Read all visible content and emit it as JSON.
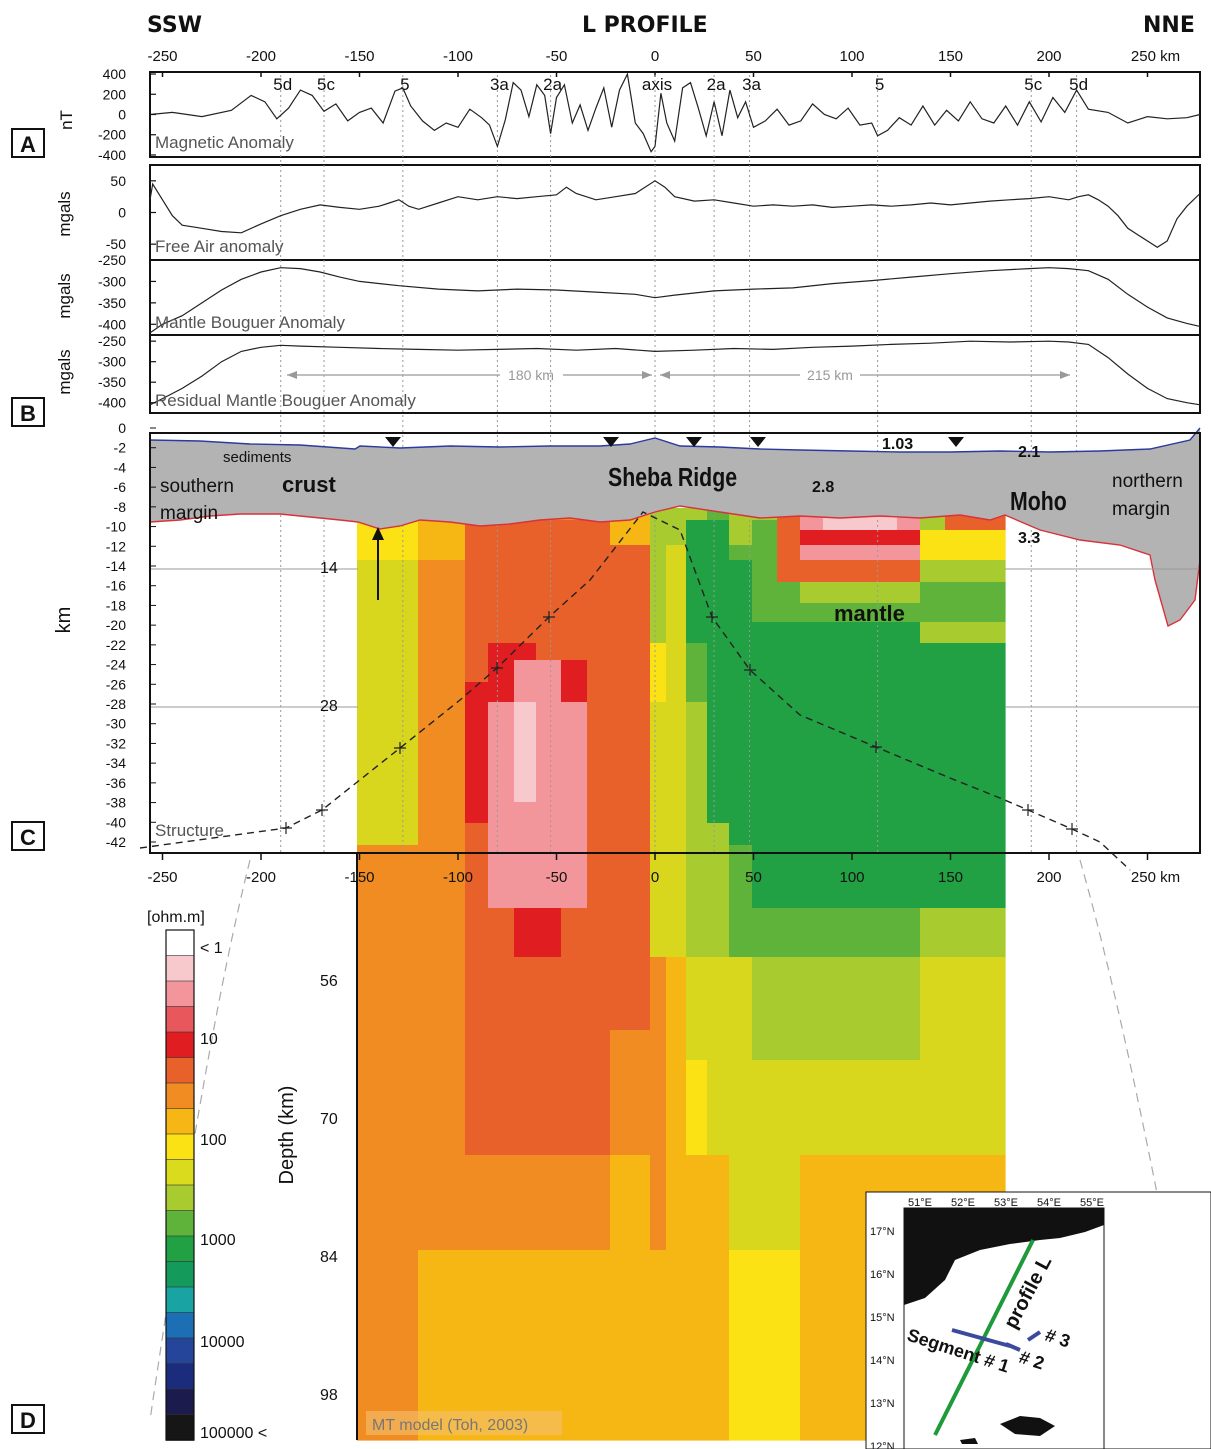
{
  "header": {
    "left": "SSW",
    "title": "L PROFILE",
    "right": "NNE"
  },
  "top_axis": {
    "ticks": [
      "-250",
      "-200",
      "-150",
      "-100",
      "-50",
      "0",
      "50",
      "100",
      "150",
      "200",
      "250 km"
    ],
    "values": [
      -250,
      -200,
      -150,
      -100,
      -50,
      0,
      50,
      100,
      150,
      200,
      250
    ]
  },
  "bottom_axis": {
    "ticks": [
      "-250",
      "-200",
      "-150",
      "-100",
      "-50",
      "0",
      "50",
      "100",
      "150",
      "200",
      "250 km"
    ],
    "values": [
      -250,
      -200,
      -150,
      -100,
      -50,
      0,
      50,
      100,
      150,
      200,
      250
    ]
  },
  "panel_letters": {
    "a": "A",
    "b": "B",
    "c": "C",
    "d": "D"
  },
  "chron_markers": [
    {
      "label": "5d",
      "x": -190
    },
    {
      "label": "5c",
      "x": -168
    },
    {
      "label": "5",
      "x": -128
    },
    {
      "label": "3a",
      "x": -80
    },
    {
      "label": "2a",
      "x": -53
    },
    {
      "label": "axis",
      "x": 0
    },
    {
      "label": "2a",
      "x": 30
    },
    {
      "label": "3a",
      "x": 48
    },
    {
      "label": "5",
      "x": 113
    },
    {
      "label": "5c",
      "x": 191
    },
    {
      "label": "5d",
      "x": 214
    }
  ],
  "panels": {
    "magnetic": {
      "name": "Magnetic Anomaly",
      "ylabel": "nT",
      "yticks": [
        "400",
        "200",
        "0",
        "-200",
        "-400"
      ]
    },
    "freeair": {
      "name": "Free Air anomaly",
      "ylabel": "mgals",
      "yticks": [
        "50",
        "0",
        "-50"
      ]
    },
    "bouguer": {
      "name": "Mantle Bouguer Anomaly",
      "ylabel": "mgals",
      "yticks": [
        "-250",
        "-300",
        "-350",
        "-400"
      ]
    },
    "residual": {
      "name": "Residual Mantle Bouguer Anomaly",
      "ylabel": "mgals",
      "yticks": [
        "-250",
        "-300",
        "-350",
        "-400"
      ],
      "span_left": "180 km",
      "span_right": "215 km"
    },
    "structure": {
      "name": "Structure",
      "ylabel": "km",
      "yticks": [
        "0",
        "-2",
        "-4",
        "-6",
        "-8",
        "-10",
        "-12",
        "-14",
        "-16",
        "-18",
        "-20",
        "-22",
        "-24",
        "-26",
        "-28",
        "-30",
        "-32",
        "-34",
        "-36",
        "-38",
        "-40",
        "-42"
      ],
      "labels": {
        "sediments": "sediments",
        "southern_margin_1": "southern",
        "southern_margin_2": "margin",
        "crust": "crust",
        "sheba": "Sheba Ridge",
        "moho": "Moho",
        "mantle": "mantle",
        "northern_margin_1": "northern",
        "northern_margin_2": "margin",
        "d103": "1.03",
        "d21": "2.1",
        "d28": "2.8",
        "d33": "3.3"
      },
      "depth_marks": [
        "14",
        "28"
      ]
    },
    "mt": {
      "depth_label": "Depth (km)",
      "depth_marks": [
        "56",
        "70",
        "84",
        "98"
      ],
      "credit": "MT model (Toh, 2003)"
    }
  },
  "colorbar": {
    "unit": "[ohm.m]",
    "labels": [
      "< 1",
      "10",
      "100",
      "1000",
      "10000",
      "100000 <"
    ],
    "colors": [
      "#ffffff",
      "#f7c9cc",
      "#f2969b",
      "#e8575c",
      "#e01e22",
      "#e8602a",
      "#f08c22",
      "#f6b714",
      "#fbe214",
      "#dbdb1e",
      "#a8cc30",
      "#5fb33a",
      "#21a144",
      "#149a5a",
      "#19a3a3",
      "#1c6fb4",
      "#24459a",
      "#1c2c7d",
      "#1b1b4e",
      "#161616"
    ]
  },
  "inset_map": {
    "lon_labels": [
      "51°E",
      "52°E",
      "53°E",
      "54°E",
      "55°E"
    ],
    "lat_labels": [
      "17°N",
      "16°N",
      "15°N",
      "14°N",
      "13°N",
      "12°N"
    ],
    "profile": "profile L",
    "segment": "Segment # 1",
    "seg2": "# 2",
    "seg3": "# 3"
  },
  "chart_data": [
    {
      "type": "line",
      "title": "Magnetic Anomaly",
      "ylabel": "nT",
      "xlim": [
        -260,
        278
      ],
      "ylim": [
        -400,
        400
      ],
      "series": [
        {
          "name": "Magnetic Anomaly",
          "x": [
            -260,
            -245,
            -230,
            -215,
            -205,
            -198,
            -192,
            -186,
            -180,
            -174,
            -168,
            -162,
            -156,
            -150,
            -144,
            -138,
            -132,
            -128,
            -124,
            -118,
            -112,
            -106,
            -100,
            -94,
            -88,
            -84,
            -80,
            -76,
            -72,
            -68,
            -64,
            -60,
            -56,
            -53,
            -50,
            -46,
            -42,
            -38,
            -34,
            -30,
            -26,
            -22,
            -18,
            -14,
            -10,
            -6,
            -2,
            0,
            3,
            6,
            10,
            14,
            18,
            22,
            26,
            30,
            34,
            38,
            42,
            46,
            50,
            56,
            62,
            68,
            74,
            80,
            86,
            92,
            98,
            104,
            110,
            113,
            118,
            124,
            130,
            136,
            142,
            148,
            154,
            160,
            166,
            172,
            178,
            184,
            190,
            196,
            202,
            208,
            214,
            220,
            230,
            240,
            250,
            260,
            270,
            278
          ],
          "y": [
            0,
            20,
            -20,
            40,
            180,
            120,
            -40,
            60,
            230,
            180,
            30,
            100,
            -60,
            20,
            60,
            -80,
            220,
            250,
            80,
            -60,
            -150,
            -80,
            -120,
            50,
            -30,
            -100,
            -300,
            -50,
            300,
            230,
            -20,
            280,
            180,
            -180,
            160,
            280,
            -80,
            90,
            -150,
            60,
            250,
            -120,
            230,
            380,
            -80,
            -180,
            -350,
            -300,
            200,
            -80,
            -250,
            250,
            300,
            60,
            -200,
            120,
            -200,
            230,
            -30,
            120,
            -120,
            -60,
            50,
            -100,
            -60,
            100,
            0,
            -40,
            60,
            -100,
            -80,
            -200,
            -150,
            -30,
            -100,
            80,
            -100,
            40,
            -60,
            120,
            -40,
            -80,
            80,
            -100,
            120,
            -70,
            160,
            20,
            230,
            50,
            20,
            -80,
            -20,
            -40,
            -30,
            0
          ]
        }
      ]
    },
    {
      "type": "line",
      "title": "Free Air anomaly",
      "ylabel": "mgals",
      "xlim": [
        -260,
        278
      ],
      "ylim": [
        -75,
        75
      ],
      "series": [
        {
          "name": "Free Air anomaly",
          "x": [
            -260,
            -255,
            -250,
            -245,
            -240,
            -230,
            -220,
            -210,
            -200,
            -190,
            -180,
            -170,
            -160,
            -150,
            -140,
            -135,
            -130,
            -125,
            -120,
            -110,
            -100,
            -90,
            -80,
            -70,
            -60,
            -50,
            -45,
            -40,
            -30,
            -20,
            -10,
            0,
            5,
            10,
            20,
            30,
            40,
            50,
            60,
            70,
            80,
            90,
            100,
            110,
            120,
            130,
            140,
            150,
            160,
            170,
            180,
            190,
            200,
            210,
            215,
            220,
            225,
            230,
            235,
            240,
            245,
            250,
            255,
            260,
            265,
            270,
            278
          ],
          "y": [
            20,
            45,
            20,
            -5,
            -20,
            -25,
            -30,
            -32,
            -18,
            -5,
            5,
            12,
            8,
            5,
            10,
            15,
            20,
            10,
            5,
            15,
            25,
            20,
            25,
            22,
            25,
            28,
            40,
            30,
            20,
            25,
            30,
            50,
            40,
            25,
            18,
            20,
            15,
            10,
            12,
            10,
            12,
            8,
            10,
            12,
            10,
            12,
            15,
            12,
            15,
            18,
            20,
            22,
            25,
            20,
            25,
            28,
            20,
            10,
            -5,
            -25,
            -35,
            -45,
            -55,
            -45,
            -10,
            10,
            30
          ]
        }
      ]
    },
    {
      "type": "line",
      "title": "Mantle Bouguer Anomaly",
      "ylabel": "mgals",
      "xlim": [
        -260,
        278
      ],
      "ylim": [
        -425,
        -250
      ],
      "series": [
        {
          "name": "Mantle Bouguer Anomaly",
          "x": [
            -260,
            -250,
            -240,
            -230,
            -220,
            -210,
            -200,
            -190,
            -180,
            -170,
            -160,
            -150,
            -130,
            -110,
            -90,
            -70,
            -50,
            -30,
            -10,
            0,
            10,
            30,
            50,
            70,
            90,
            110,
            130,
            150,
            170,
            190,
            200,
            210,
            220,
            230,
            240,
            250,
            260,
            270,
            278
          ],
          "y": [
            -420,
            -400,
            -380,
            -350,
            -320,
            -295,
            -278,
            -268,
            -270,
            -278,
            -290,
            -300,
            -310,
            -318,
            -322,
            -318,
            -320,
            -325,
            -330,
            -338,
            -332,
            -322,
            -318,
            -315,
            -305,
            -298,
            -290,
            -282,
            -275,
            -270,
            -268,
            -270,
            -275,
            -295,
            -330,
            -360,
            -385,
            -398,
            -405
          ]
        }
      ]
    },
    {
      "type": "line",
      "title": "Residual Mantle Bouguer Anomaly",
      "ylabel": "mgals",
      "xlim": [
        -260,
        278
      ],
      "ylim": [
        -425,
        -235
      ],
      "series": [
        {
          "name": "Residual Mantle Bouguer Anomaly",
          "x": [
            -260,
            -250,
            -240,
            -230,
            -220,
            -210,
            -200,
            -190,
            -180,
            -160,
            -140,
            -120,
            -100,
            -80,
            -60,
            -40,
            -20,
            0,
            20,
            40,
            60,
            80,
            100,
            120,
            140,
            160,
            180,
            200,
            210,
            220,
            230,
            240,
            250,
            260,
            270,
            278
          ],
          "y": [
            -405,
            -390,
            -365,
            -335,
            -300,
            -275,
            -265,
            -260,
            -262,
            -265,
            -268,
            -270,
            -272,
            -270,
            -268,
            -272,
            -268,
            -275,
            -272,
            -268,
            -270,
            -265,
            -262,
            -258,
            -255,
            -250,
            -252,
            -250,
            -252,
            -258,
            -290,
            -330,
            -365,
            -390,
            -400,
            -405
          ]
        }
      ]
    }
  ]
}
